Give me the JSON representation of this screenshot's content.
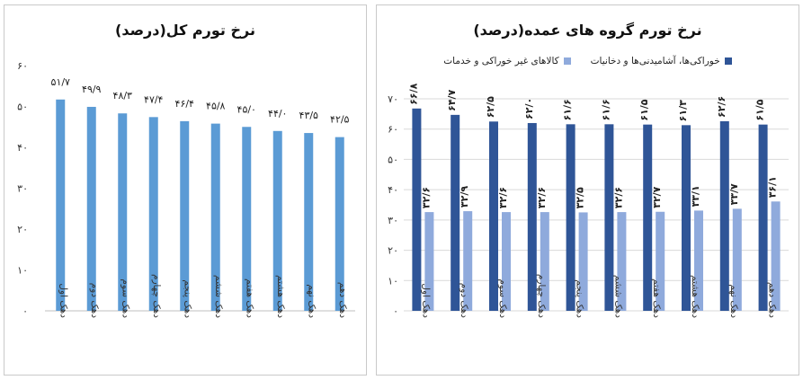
{
  "chart_data": [
    {
      "type": "bar",
      "title": "نرخ تورم کل(درصد)",
      "categories": [
        "دهک اول",
        "دهک دوم",
        "دهک سوم",
        "دهک چهارم",
        "دهک پنجم",
        "دهک ششم",
        "دهک هفتم",
        "دهک هشتم",
        "دهک نهم",
        "دهک دهم"
      ],
      "values": [
        51.7,
        49.9,
        48.3,
        47.4,
        46.4,
        45.8,
        45.0,
        44.0,
        43.5,
        42.5
      ],
      "value_labels": [
        "۵۱/۷",
        "۴۹/۹",
        "۴۸/۳",
        "۴۷/۴",
        "۴۶/۴",
        "۴۵/۸",
        "۴۵/۰",
        "۴۴/۰",
        "۴۳/۵",
        "۴۲/۵"
      ],
      "ylim": [
        0,
        60
      ],
      "yticks": [
        0,
        10,
        20,
        30,
        40,
        50,
        60
      ],
      "ytick_labels": [
        "۰",
        "۱۰",
        "۲۰",
        "۳۰",
        "۴۰",
        "۵۰",
        "۶۰"
      ],
      "grid": false,
      "color": "#5b9bd5"
    },
    {
      "type": "bar",
      "title": "نرخ تورم گروه های عمده(درصد)",
      "categories": [
        "دهک اول",
        "دهک دوم",
        "دهک سوم",
        "دهک چهارم",
        "دهک پنجم",
        "دهک ششم",
        "دهک هفتم",
        "دهک هشتم",
        "دهک نهم",
        "دهک دهم"
      ],
      "series": [
        {
          "name": "خوراکی‌ها، آشامیدنی‌ها و دخانیات",
          "values": [
            66.8,
            64.7,
            62.5,
            62.0,
            61.6,
            61.6,
            61.5,
            61.3,
            62.6,
            61.5
          ],
          "value_labels": [
            "۶۶/۸",
            "۶۴/۷",
            "۶۲/۵",
            "۶۲/۰",
            "۶۱/۶",
            "۶۱/۶",
            "۶۱/۵",
            "۶۱/۳",
            "۶۲/۶",
            "۶۱/۵"
          ],
          "color": "#2f5597"
        },
        {
          "name": "کالاهای غیر خوراکی و خدمات",
          "values": [
            32.6,
            32.9,
            32.6,
            32.6,
            32.5,
            32.6,
            32.7,
            33.1,
            33.7,
            36.1
          ],
          "value_labels": [
            "۳۲/۶",
            "۳۲/۹",
            "۳۲/۶",
            "۳۲/۶",
            "۳۲/۵",
            "۳۲/۶",
            "۳۲/۷",
            "۳۳/۱",
            "۳۳/۷",
            "۳۶/۱"
          ],
          "color": "#8faadc"
        }
      ],
      "ylim": [
        0,
        70
      ],
      "yticks": [
        0,
        10,
        20,
        30,
        40,
        50,
        60,
        70
      ],
      "ytick_labels": [
        "۰",
        "۱۰",
        "۲۰",
        "۳۰",
        "۴۰",
        "۵۰",
        "۶۰",
        "۷۰"
      ],
      "grid": true,
      "legend_position": "top"
    }
  ]
}
